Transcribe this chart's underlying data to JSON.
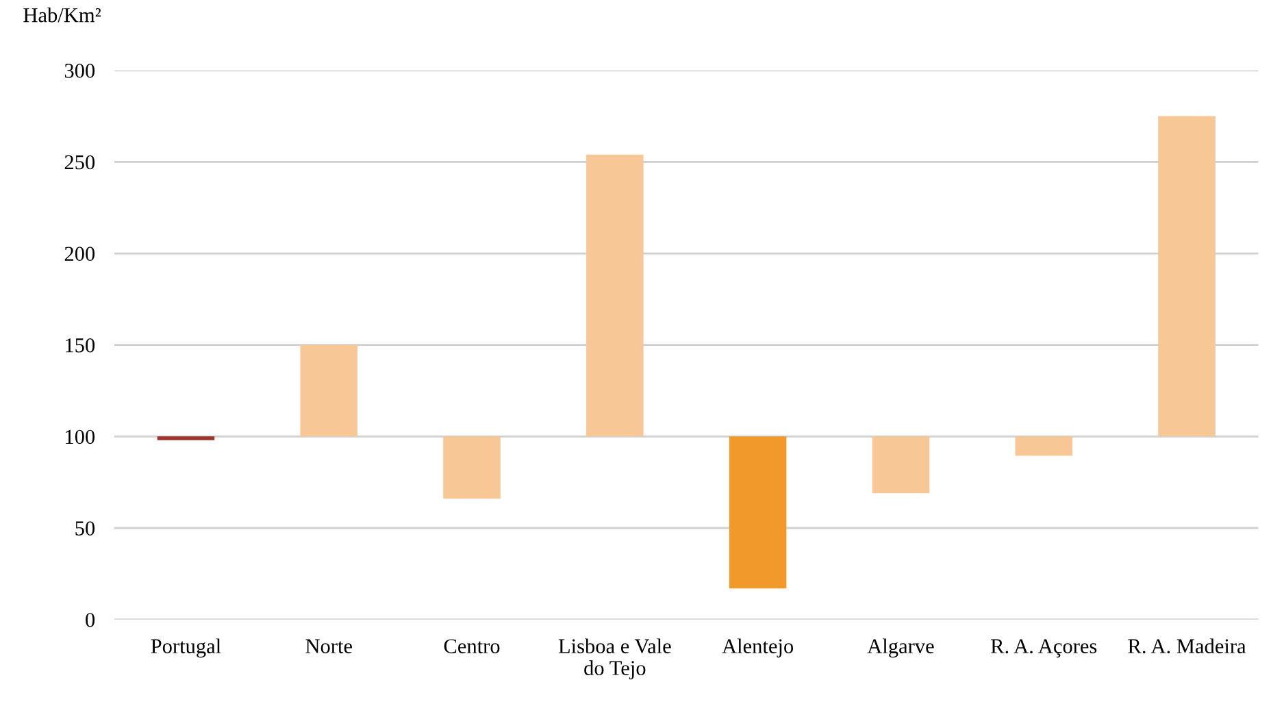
{
  "chart_data": {
    "type": "bar",
    "ylabel": "Hab/Km²",
    "categories": [
      "Portugal",
      "Norte",
      "Centro",
      "Lisboa e Vale\ndo Tejo",
      "Alentejo",
      "Algarve",
      "R. A. Açores",
      "R. A. Madeira"
    ],
    "base": [
      100,
      100,
      100,
      100,
      100,
      100,
      100,
      100
    ],
    "values": [
      -2,
      50,
      -34,
      154,
      -83,
      -31,
      -10.5,
      175
    ],
    "colors": [
      "#a0322d",
      "#f7c795",
      "#f7c795",
      "#f7c795",
      "#f19a2b",
      "#f7c795",
      "#f7c795",
      "#f7c795"
    ],
    "ylim": [
      0,
      300
    ],
    "yticks": [
      0,
      50,
      100,
      150,
      200,
      250,
      300
    ],
    "grid": "y"
  }
}
